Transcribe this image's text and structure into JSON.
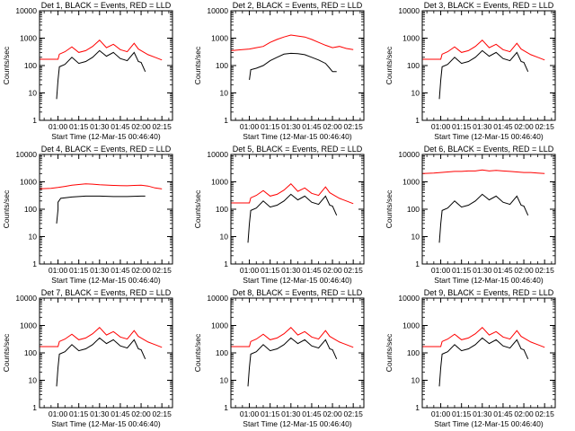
{
  "chart_data": [
    {
      "type": "line",
      "title": "Det 1, BLACK = Events, RED = LLD",
      "xlabel": "Start Time (12-Mar-15 00:46:40)",
      "ylabel": "Counts/sec",
      "yscale": "log",
      "ylim": [
        1,
        10000
      ],
      "xticks": [
        "01:00",
        "01:15",
        "01:30",
        "01:45",
        "02:00",
        "02:15"
      ],
      "yticks": [
        "1",
        "10",
        "100",
        "1000",
        "10000"
      ],
      "series": [
        {
          "color": "#000000",
          "x": [
            "00:59",
            "01:00",
            "01:00",
            "01:01",
            "01:05",
            "01:10",
            "01:15",
            "01:20",
            "01:25",
            "01:30",
            "01:35",
            "01:40",
            "01:45",
            "01:50",
            "01:55",
            "01:58",
            "02:00",
            "02:03"
          ],
          "values": [
            6,
            30,
            30,
            90,
            110,
            200,
            120,
            140,
            200,
            350,
            220,
            300,
            180,
            150,
            300,
            140,
            130,
            60
          ]
        },
        {
          "color": "#ff0000",
          "x": [
            "00:47",
            "00:55",
            "01:00",
            "01:01",
            "01:05",
            "01:10",
            "01:15",
            "01:20",
            "01:25",
            "01:30",
            "01:35",
            "01:40",
            "01:45",
            "01:50",
            "01:55",
            "01:58",
            "02:00",
            "02:05",
            "02:10",
            "02:15"
          ],
          "values": [
            170,
            170,
            170,
            260,
            320,
            480,
            300,
            350,
            500,
            850,
            450,
            600,
            380,
            320,
            650,
            400,
            350,
            250,
            200,
            160
          ]
        }
      ]
    },
    {
      "type": "line",
      "title": "Det 2, BLACK = Events, RED = LLD",
      "xlabel": "Start Time (12-Mar-15 00:46:40)",
      "ylabel": "Counts/sec",
      "yscale": "log",
      "ylim": [
        1,
        10000
      ],
      "xticks": [
        "01:00",
        "01:15",
        "01:30",
        "01:45",
        "02:00",
        "02:15"
      ],
      "yticks": [
        "1",
        "10",
        "100",
        "1000",
        "10000"
      ],
      "series": [
        {
          "color": "#000000",
          "x": [
            "01:00",
            "01:01",
            "01:05",
            "01:10",
            "01:15",
            "01:20",
            "01:25",
            "01:30",
            "01:35",
            "01:40",
            "01:45",
            "01:50",
            "01:55",
            "01:58",
            "02:00",
            "02:03"
          ],
          "values": [
            30,
            70,
            80,
            100,
            150,
            200,
            260,
            280,
            270,
            250,
            200,
            160,
            120,
            80,
            60,
            60
          ]
        },
        {
          "color": "#ff0000",
          "x": [
            "00:47",
            "00:55",
            "01:00",
            "01:05",
            "01:10",
            "01:15",
            "01:20",
            "01:25",
            "01:30",
            "01:35",
            "01:40",
            "01:45",
            "01:50",
            "01:55",
            "02:00",
            "02:05",
            "02:10",
            "02:15"
          ],
          "values": [
            350,
            380,
            400,
            450,
            500,
            700,
            900,
            1100,
            1300,
            1200,
            1100,
            900,
            700,
            550,
            450,
            500,
            420,
            380
          ]
        }
      ]
    },
    {
      "type": "line",
      "title": "Det 3, BLACK = Events, RED = LLD",
      "xlabel": "Start Time (12-Mar-15 00:46:40)",
      "ylabel": "Counts/sec",
      "yscale": "log",
      "ylim": [
        1,
        10000
      ],
      "xticks": [
        "01:00",
        "01:15",
        "01:30",
        "01:45",
        "02:00",
        "02:15"
      ],
      "yticks": [
        "1",
        "10",
        "100",
        "1000",
        "10000"
      ],
      "series": [
        {
          "color": "#000000",
          "x": [
            "00:59",
            "01:00",
            "01:00",
            "01:01",
            "01:05",
            "01:10",
            "01:15",
            "01:20",
            "01:25",
            "01:30",
            "01:35",
            "01:40",
            "01:45",
            "01:50",
            "01:55",
            "01:58",
            "02:00",
            "02:03"
          ],
          "values": [
            6,
            30,
            30,
            90,
            110,
            200,
            120,
            140,
            200,
            350,
            220,
            300,
            180,
            150,
            300,
            140,
            130,
            60
          ]
        },
        {
          "color": "#ff0000",
          "x": [
            "00:47",
            "00:55",
            "01:00",
            "01:01",
            "01:05",
            "01:10",
            "01:15",
            "01:20",
            "01:25",
            "01:30",
            "01:35",
            "01:40",
            "01:45",
            "01:50",
            "01:55",
            "01:58",
            "02:00",
            "02:05",
            "02:10",
            "02:15"
          ],
          "values": [
            170,
            170,
            170,
            260,
            320,
            480,
            300,
            350,
            500,
            850,
            450,
            600,
            380,
            320,
            650,
            400,
            350,
            250,
            200,
            160
          ]
        }
      ]
    },
    {
      "type": "line",
      "title": "Det 4, BLACK = Events, RED = LLD",
      "xlabel": "Start Time (12-Mar-15 00:46:40)",
      "ylabel": "Counts/sec",
      "yscale": "log",
      "ylim": [
        1,
        10000
      ],
      "xticks": [
        "01:00",
        "01:15",
        "01:30",
        "01:45",
        "02:00",
        "02:15"
      ],
      "yticks": [
        "1",
        "10",
        "100",
        "1000",
        "10000"
      ],
      "series": [
        {
          "color": "#000000",
          "x": [
            "00:59",
            "01:00",
            "01:00",
            "01:02",
            "01:10",
            "01:20",
            "01:30",
            "01:40",
            "01:50",
            "02:00",
            "02:03"
          ],
          "values": [
            30,
            100,
            180,
            250,
            280,
            300,
            300,
            290,
            290,
            300,
            300
          ]
        },
        {
          "color": "#ff0000",
          "x": [
            "00:47",
            "00:55",
            "01:00",
            "01:05",
            "01:10",
            "01:15",
            "01:20",
            "01:25",
            "01:30",
            "01:35",
            "01:40",
            "01:45",
            "01:50",
            "01:55",
            "02:00",
            "02:05",
            "02:10",
            "02:15"
          ],
          "values": [
            560,
            580,
            620,
            680,
            750,
            800,
            850,
            820,
            780,
            760,
            740,
            730,
            720,
            740,
            750,
            700,
            600,
            550
          ]
        }
      ]
    },
    {
      "type": "line",
      "title": "Det 5, BLACK = Events, RED = LLD",
      "xlabel": "Start Time (12-Mar-15 00:46:40)",
      "ylabel": "Counts/sec",
      "yscale": "log",
      "ylim": [
        1,
        10000
      ],
      "xticks": [
        "01:00",
        "01:15",
        "01:30",
        "01:45",
        "02:00",
        "02:15"
      ],
      "yticks": [
        "1",
        "10",
        "100",
        "1000",
        "10000"
      ],
      "series": [
        {
          "color": "#000000",
          "x": [
            "00:59",
            "01:00",
            "01:00",
            "01:01",
            "01:05",
            "01:10",
            "01:15",
            "01:20",
            "01:25",
            "01:30",
            "01:35",
            "01:40",
            "01:45",
            "01:50",
            "01:55",
            "01:58",
            "02:00",
            "02:03"
          ],
          "values": [
            6,
            30,
            30,
            90,
            110,
            200,
            120,
            140,
            200,
            350,
            220,
            300,
            180,
            150,
            300,
            140,
            130,
            60
          ]
        },
        {
          "color": "#ff0000",
          "x": [
            "00:47",
            "00:55",
            "01:00",
            "01:01",
            "01:05",
            "01:10",
            "01:15",
            "01:20",
            "01:25",
            "01:30",
            "01:35",
            "01:40",
            "01:45",
            "01:50",
            "01:55",
            "01:58",
            "02:00",
            "02:05",
            "02:10",
            "02:15"
          ],
          "values": [
            170,
            170,
            170,
            260,
            320,
            480,
            300,
            350,
            500,
            850,
            450,
            600,
            380,
            320,
            650,
            400,
            350,
            250,
            200,
            160
          ]
        }
      ]
    },
    {
      "type": "line",
      "title": "Det 6, BLACK = Events, RED = LLD",
      "xlabel": "Start Time (12-Mar-15 00:46:40)",
      "ylabel": "Counts/sec",
      "yscale": "log",
      "ylim": [
        1,
        10000
      ],
      "xticks": [
        "01:00",
        "01:15",
        "01:30",
        "01:45",
        "02:00",
        "02:15"
      ],
      "yticks": [
        "1",
        "10",
        "100",
        "1000",
        "10000"
      ],
      "series": [
        {
          "color": "#000000",
          "x": [
            "00:59",
            "01:00",
            "01:00",
            "01:01",
            "01:05",
            "01:10",
            "01:15",
            "01:20",
            "01:25",
            "01:30",
            "01:35",
            "01:40",
            "01:45",
            "01:50",
            "01:55",
            "01:58",
            "02:00",
            "02:03"
          ],
          "values": [
            6,
            30,
            30,
            90,
            110,
            200,
            120,
            140,
            200,
            350,
            220,
            300,
            180,
            150,
            300,
            140,
            130,
            60
          ]
        },
        {
          "color": "#ff0000",
          "x": [
            "00:47",
            "00:55",
            "01:00",
            "01:05",
            "01:10",
            "01:15",
            "01:20",
            "01:25",
            "01:30",
            "01:35",
            "01:40",
            "01:45",
            "01:50",
            "01:55",
            "02:00",
            "02:05",
            "02:10",
            "02:15"
          ],
          "values": [
            2000,
            2100,
            2200,
            2300,
            2400,
            2400,
            2500,
            2500,
            2700,
            2500,
            2600,
            2500,
            2400,
            2300,
            2200,
            2200,
            2100,
            2000
          ]
        }
      ]
    },
    {
      "type": "line",
      "title": "Det 7, BLACK = Events, RED = LLD",
      "xlabel": "Start Time (12-Mar-15 00:46:40)",
      "ylabel": "Counts/sec",
      "yscale": "log",
      "ylim": [
        1,
        10000
      ],
      "xticks": [
        "01:00",
        "01:15",
        "01:30",
        "01:45",
        "02:00",
        "02:15"
      ],
      "yticks": [
        "1",
        "10",
        "100",
        "1000",
        "10000"
      ],
      "series": [
        {
          "color": "#000000",
          "x": [
            "00:59",
            "01:00",
            "01:00",
            "01:01",
            "01:05",
            "01:10",
            "01:15",
            "01:20",
            "01:25",
            "01:30",
            "01:35",
            "01:40",
            "01:45",
            "01:50",
            "01:55",
            "01:58",
            "02:00",
            "02:03"
          ],
          "values": [
            6,
            30,
            30,
            90,
            110,
            200,
            120,
            140,
            200,
            350,
            220,
            300,
            180,
            150,
            300,
            140,
            130,
            60
          ]
        },
        {
          "color": "#ff0000",
          "x": [
            "00:47",
            "00:55",
            "01:00",
            "01:01",
            "01:05",
            "01:10",
            "01:15",
            "01:20",
            "01:25",
            "01:30",
            "01:35",
            "01:40",
            "01:45",
            "01:50",
            "01:55",
            "01:58",
            "02:00",
            "02:05",
            "02:10",
            "02:15"
          ],
          "values": [
            170,
            170,
            170,
            260,
            320,
            480,
            300,
            350,
            500,
            850,
            450,
            600,
            380,
            320,
            650,
            400,
            350,
            250,
            200,
            160
          ]
        }
      ]
    },
    {
      "type": "line",
      "title": "Det 8, BLACK = Events, RED = LLD",
      "xlabel": "Start Time (12-Mar-15 00:46:40)",
      "ylabel": "Counts/sec",
      "yscale": "log",
      "ylim": [
        1,
        10000
      ],
      "xticks": [
        "01:00",
        "01:15",
        "01:30",
        "01:45",
        "02:00",
        "02:15"
      ],
      "yticks": [
        "1",
        "10",
        "100",
        "1000",
        "10000"
      ],
      "series": [
        {
          "color": "#000000",
          "x": [
            "00:59",
            "01:00",
            "01:00",
            "01:01",
            "01:05",
            "01:10",
            "01:15",
            "01:20",
            "01:25",
            "01:30",
            "01:35",
            "01:40",
            "01:45",
            "01:50",
            "01:55",
            "01:58",
            "02:00",
            "02:03"
          ],
          "values": [
            6,
            30,
            30,
            90,
            110,
            200,
            120,
            140,
            200,
            350,
            220,
            300,
            180,
            150,
            300,
            140,
            130,
            60
          ]
        },
        {
          "color": "#ff0000",
          "x": [
            "00:47",
            "00:55",
            "01:00",
            "01:01",
            "01:05",
            "01:10",
            "01:15",
            "01:20",
            "01:25",
            "01:30",
            "01:35",
            "01:40",
            "01:45",
            "01:50",
            "01:55",
            "01:58",
            "02:00",
            "02:05",
            "02:10",
            "02:15"
          ],
          "values": [
            170,
            170,
            170,
            260,
            320,
            480,
            300,
            350,
            500,
            850,
            450,
            600,
            380,
            320,
            650,
            400,
            350,
            250,
            200,
            160
          ]
        }
      ]
    },
    {
      "type": "line",
      "title": "Det 9, BLACK = Events, RED = LLD",
      "xlabel": "Start Time (12-Mar-15 00:46:40)",
      "ylabel": "Counts/sec",
      "yscale": "log",
      "ylim": [
        1,
        10000
      ],
      "xticks": [
        "01:00",
        "01:15",
        "01:30",
        "01:45",
        "02:00",
        "02:15"
      ],
      "yticks": [
        "1",
        "10",
        "100",
        "1000",
        "10000"
      ],
      "series": [
        {
          "color": "#000000",
          "x": [
            "00:59",
            "01:00",
            "01:00",
            "01:01",
            "01:05",
            "01:10",
            "01:15",
            "01:20",
            "01:25",
            "01:30",
            "01:35",
            "01:40",
            "01:45",
            "01:50",
            "01:55",
            "01:58",
            "02:00",
            "02:03"
          ],
          "values": [
            6,
            30,
            30,
            90,
            110,
            200,
            120,
            140,
            200,
            350,
            220,
            300,
            180,
            150,
            300,
            140,
            130,
            60
          ]
        },
        {
          "color": "#ff0000",
          "x": [
            "00:47",
            "00:55",
            "01:00",
            "01:01",
            "01:05",
            "01:10",
            "01:15",
            "01:20",
            "01:25",
            "01:30",
            "01:35",
            "01:40",
            "01:45",
            "01:50",
            "01:55",
            "01:58",
            "02:00",
            "02:05",
            "02:10",
            "02:15"
          ],
          "values": [
            170,
            170,
            170,
            260,
            320,
            480,
            300,
            350,
            500,
            850,
            450,
            600,
            380,
            320,
            650,
            400,
            350,
            250,
            200,
            160
          ]
        }
      ]
    }
  ]
}
